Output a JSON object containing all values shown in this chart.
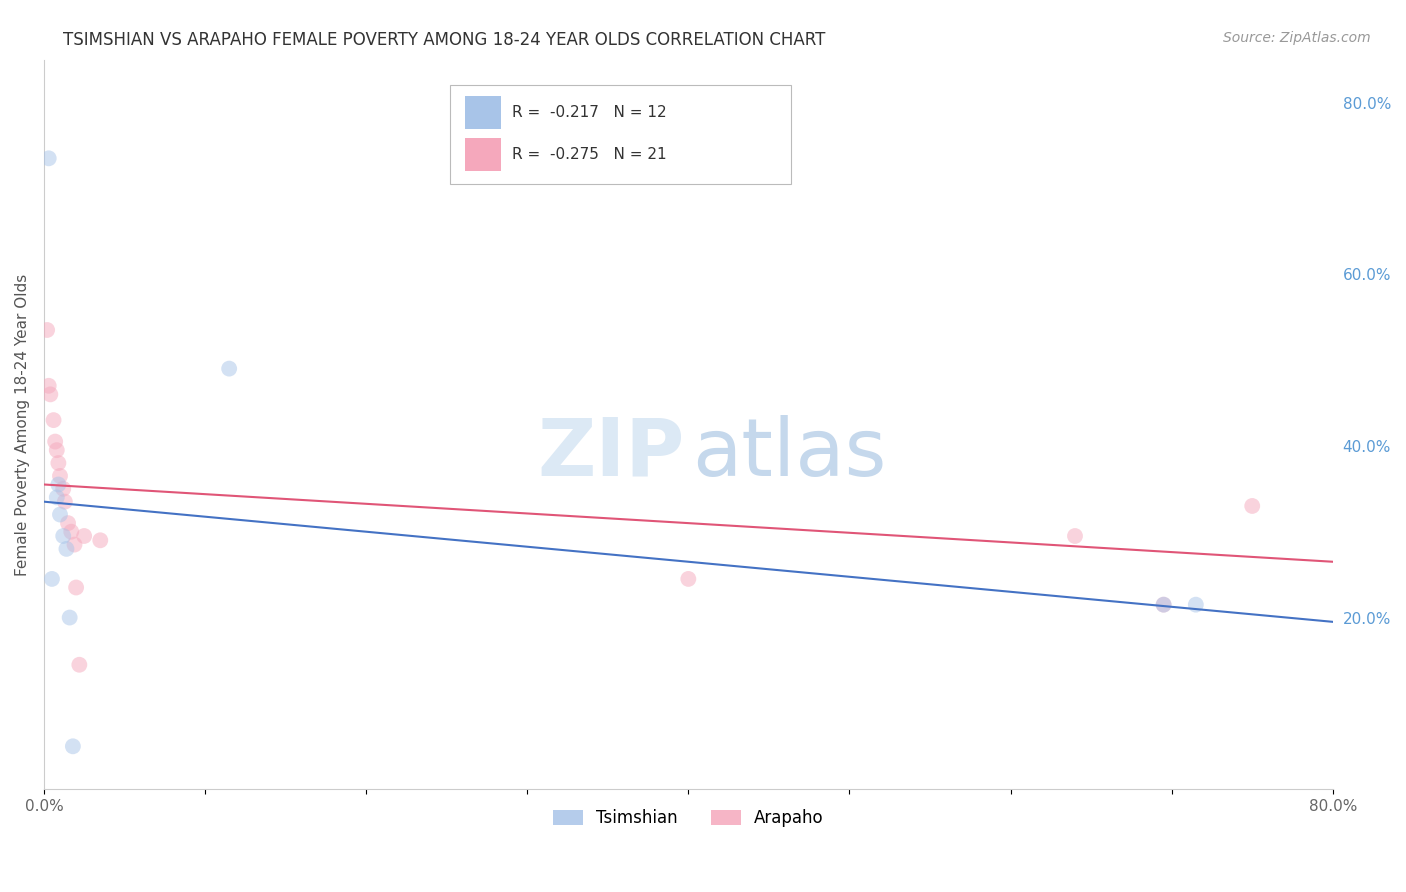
{
  "title": "TSIMSHIAN VS ARAPAHO FEMALE POVERTY AMONG 18-24 YEAR OLDS CORRELATION CHART",
  "source": "Source: ZipAtlas.com",
  "ylabel": "Female Poverty Among 18-24 Year Olds",
  "xlim": [
    0.0,
    0.8
  ],
  "ylim": [
    0.0,
    0.85
  ],
  "yticks_right": [
    0.2,
    0.4,
    0.6,
    0.8
  ],
  "ytick_right_labels": [
    "20.0%",
    "40.0%",
    "60.0%",
    "80.0%"
  ],
  "tsimshian_color": "#a8c4e8",
  "arapaho_color": "#f5a8bc",
  "tsimshian_line_color": "#4472c4",
  "arapaho_line_color": "#e05577",
  "tsimshian_r": -0.217,
  "tsimshian_n": 12,
  "arapaho_r": -0.275,
  "arapaho_n": 21,
  "tsimshian_x": [
    0.003,
    0.005,
    0.008,
    0.009,
    0.01,
    0.012,
    0.014,
    0.016,
    0.018,
    0.115,
    0.695,
    0.715
  ],
  "tsimshian_y": [
    0.735,
    0.245,
    0.34,
    0.355,
    0.32,
    0.295,
    0.28,
    0.2,
    0.05,
    0.49,
    0.215,
    0.215
  ],
  "arapaho_x": [
    0.002,
    0.003,
    0.004,
    0.006,
    0.007,
    0.008,
    0.009,
    0.01,
    0.012,
    0.013,
    0.015,
    0.017,
    0.019,
    0.02,
    0.022,
    0.025,
    0.035,
    0.4,
    0.64,
    0.695,
    0.75
  ],
  "arapaho_y": [
    0.535,
    0.47,
    0.46,
    0.43,
    0.405,
    0.395,
    0.38,
    0.365,
    0.35,
    0.335,
    0.31,
    0.3,
    0.285,
    0.235,
    0.145,
    0.295,
    0.29,
    0.245,
    0.295,
    0.215,
    0.33
  ],
  "tsimshian_line_x0": 0.0,
  "tsimshian_line_y0": 0.335,
  "tsimshian_line_x1": 0.8,
  "tsimshian_line_y1": 0.195,
  "arapaho_line_x0": 0.0,
  "arapaho_line_y0": 0.355,
  "arapaho_line_x1": 0.8,
  "arapaho_line_y1": 0.265,
  "watermark_zip": "ZIP",
  "watermark_atlas": "atlas",
  "background_color": "#ffffff",
  "grid_color": "#dddddd",
  "marker_size": 130,
  "marker_alpha": 0.5
}
